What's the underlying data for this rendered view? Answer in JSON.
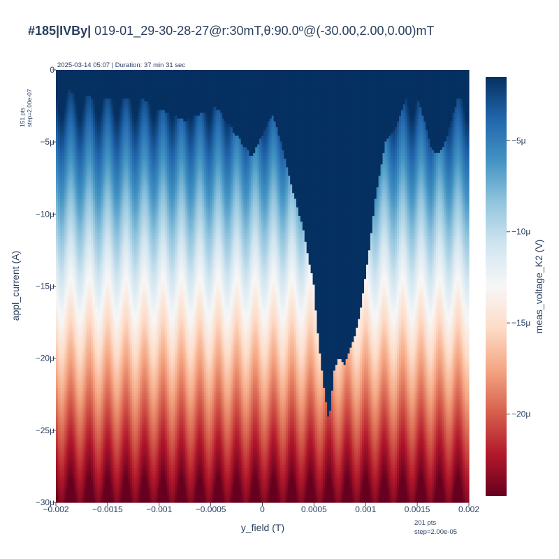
{
  "title": {
    "prefix": "#185|IVBy|",
    "rest": " 019-01_29-30-28-27@r:30mT,θ:90.0º@(-30.00,2.00,0.00)mT"
  },
  "info_line": "2025-03-14 05:07 | Duration: 37 min 31 sec",
  "y_points_note": {
    "count": "151 pts",
    "step": "step=2.00e-07"
  },
  "x_points_note": {
    "count": "201 pts",
    "step": "step=2.00e-05"
  },
  "colors": {
    "scale": [
      "#67001f",
      "#b2182b",
      "#d6604d",
      "#f4a582",
      "#fddbc7",
      "#f7f7f7",
      "#d1e5f0",
      "#92c5de",
      "#4393c3",
      "#2166ac",
      "#053061"
    ],
    "text": "#2a3f5f",
    "axis": "#444444"
  },
  "chart_data": {
    "type": "heatmap",
    "xlabel": "y_field (T)",
    "ylabel": "appl_current (A)",
    "colorbar_label": "meas_voltage_K2 (V)",
    "xlim": [
      -0.002,
      0.002
    ],
    "ylim": [
      -3e-05,
      0
    ],
    "x_ticks": [
      {
        "v": -0.002,
        "label": "−0.002"
      },
      {
        "v": -0.0015,
        "label": "−0.0015"
      },
      {
        "v": -0.001,
        "label": "−0.001"
      },
      {
        "v": -0.0005,
        "label": "−0.0005"
      },
      {
        "v": 0,
        "label": "0"
      },
      {
        "v": 0.0005,
        "label": "0.0005"
      },
      {
        "v": 0.001,
        "label": "0.001"
      },
      {
        "v": 0.0015,
        "label": "0.0015"
      },
      {
        "v": 0.002,
        "label": "0.002"
      }
    ],
    "y_ticks": [
      {
        "v": 0,
        "label": "0"
      },
      {
        "v": -5e-06,
        "label": "−5μ"
      },
      {
        "v": -1e-05,
        "label": "−10μ"
      },
      {
        "v": -1.5e-05,
        "label": "−15μ"
      },
      {
        "v": -2e-05,
        "label": "−20μ"
      },
      {
        "v": -2.5e-05,
        "label": "−25μ"
      },
      {
        "v": -3e-05,
        "label": "−30μ"
      }
    ],
    "colorbar_range": [
      -2.45e-05,
      -1.5e-06
    ],
    "colorbar_ticks": [
      {
        "v": -5e-06,
        "label": "−5μ"
      },
      {
        "v": -1e-05,
        "label": "−10μ"
      },
      {
        "v": -1.5e-05,
        "label": "−15μ"
      },
      {
        "v": -2e-05,
        "label": "−20μ"
      }
    ],
    "x_count": 201,
    "y_count": 151,
    "description_of_values": "voltage approx equal to applied current in low-current region; saturates at dark-blue level where current magnitude is below the switching boundary",
    "switching_boundary": {
      "x": [
        -0.002,
        -0.0018,
        -0.0016,
        -0.0014,
        -0.0012,
        -0.00105,
        -0.0009,
        -0.00075,
        -0.0006,
        -0.00045,
        -0.0003,
        -0.00015,
        -0.0001,
        0.0,
        0.0001,
        0.0002,
        0.0003,
        0.0004,
        0.0005,
        0.00055,
        0.0006,
        0.00065,
        0.0007,
        0.00075,
        0.0008,
        0.00085,
        0.0009,
        0.00095,
        0.001,
        0.00105,
        0.0011,
        0.0012,
        0.0013,
        0.0014,
        0.0015,
        0.0016,
        0.00165,
        0.0017,
        0.00175,
        0.0018,
        0.0019,
        0.002
      ],
      "y": [
        -1.2e-06,
        -1.5e-06,
        -2e-06,
        -2e-06,
        -1.8e-06,
        -2.5e-06,
        -3e-06,
        -3.5e-06,
        -3e-06,
        -2.5e-06,
        -4e-06,
        -5.5e-06,
        -6e-06,
        -4.5e-06,
        -3e-06,
        -5.5e-06,
        -8.5e-06,
        -1.1e-05,
        -1.5e-05,
        -1.9e-05,
        -2.2e-05,
        -2.45e-05,
        -2.1e-05,
        -2e-05,
        -2.05e-05,
        -1.95e-05,
        -1.85e-05,
        -1.7e-05,
        -1.45e-05,
        -1.2e-05,
        -9e-06,
        -5e-06,
        -4e-06,
        -2e-06,
        -1.5e-06,
        -4e-06,
        -5.5e-06,
        -5.8e-06,
        -5.5e-06,
        -4.5e-06,
        -2e-06,
        -1.5e-06
      ]
    }
  }
}
